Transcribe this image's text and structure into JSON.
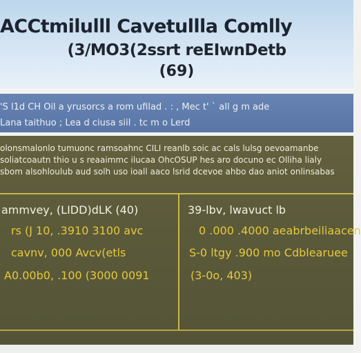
{
  "header": {
    "title": "ACCtmilulll Cavetullla Comlly",
    "subtitle": "(3/MO3(2ssrt reEIwnDetb",
    "count": "(69)"
  },
  "info_band": {
    "line1": "'S l1d CH Oil  a yrusorcs a rom ufilad . : , Mec  t' ` aIl  g m ade",
    "line2": "Lana taithuo ; Lea d ciusa siil . tc m o Lerd"
  },
  "summary": {
    "line1": "olonsmalonlo tumuonc ramsoahnc CILI reanlb soic ac cals   lulsg  oevoamanbe",
    "line2": "soliatcoautn thio u s reaaimmc ilucaa OhcOSUP hes aro  docuno ec Olliha lialy",
    "line3": "sbom  alsohloulub  aud solh uso ioall  aaco lsrid dcevoe ahbo dao aniot onlinsabas"
  },
  "grid": {
    "left": {
      "heading": "ammvey, (LIDD)dLK (40)",
      "row1": "rs  (J 10, .3910  3100  avc",
      "row2": "cavnv, 000 Avcv(etls",
      "row3": "A0.00b0, .100 (3000 0091"
    },
    "right": {
      "heading": "39-lbv, lwavuct lb",
      "row1": "0 .000 .4000  aeabrbeiliaacen",
      "row2": "S-0 ltgy .900  mo Cdblearuee",
      "row3": "(3-0o, 403)"
    }
  },
  "colors": {
    "header_bg": "#cde0f1",
    "band_bg": "#5f7bab",
    "panel_bg": "#5b5a3a",
    "accent_line": "#cdb84a",
    "value_text": "#e6c93c"
  }
}
